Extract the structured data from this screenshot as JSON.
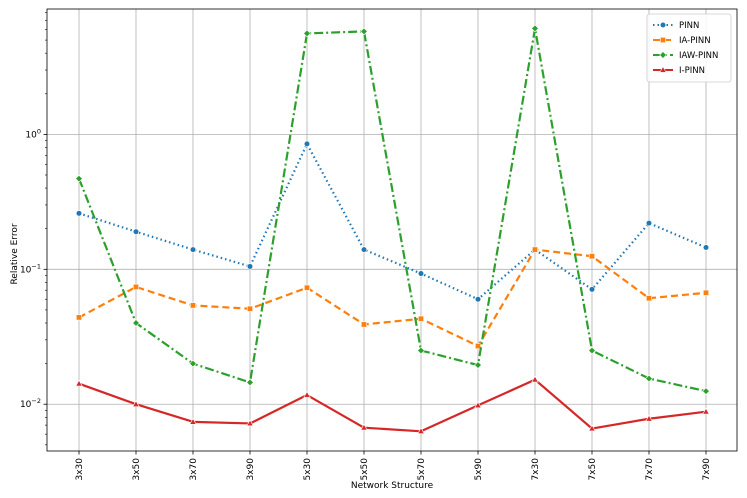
{
  "chart_data": {
    "type": "line",
    "title": "",
    "xlabel": "Network Structure",
    "ylabel": "Relative Error",
    "yscale": "log",
    "ylim": [
      0.0045,
      8.5
    ],
    "grid": true,
    "legend_position": "top-right",
    "categories": [
      "3x30",
      "3x50",
      "3x70",
      "3x90",
      "5x30",
      "5x50",
      "5x70",
      "5x90",
      "7x30",
      "7x50",
      "7x70",
      "7x90"
    ],
    "y_ticks": [
      {
        "value": 0.01,
        "base": "10",
        "exp": "−2"
      },
      {
        "value": 0.1,
        "base": "10",
        "exp": "−1"
      },
      {
        "value": 1,
        "base": "10",
        "exp": "0"
      }
    ],
    "series": [
      {
        "name": "PINN",
        "color": "#1f77b4",
        "dash": "1.5,3",
        "marker": "circle",
        "values": [
          0.26,
          0.19,
          0.14,
          0.105,
          0.85,
          0.14,
          0.093,
          0.06,
          0.14,
          0.071,
          0.22,
          0.145
        ]
      },
      {
        "name": "IA-PINN",
        "color": "#ff7f0e",
        "dash": "7,4",
        "marker": "square",
        "values": [
          0.044,
          0.074,
          0.054,
          0.051,
          0.073,
          0.039,
          0.043,
          0.027,
          0.14,
          0.125,
          0.061,
          0.067
        ]
      },
      {
        "name": "IAW-PINN",
        "color": "#2ca02c",
        "dash": "9,3,2,3",
        "marker": "diamond",
        "values": [
          0.47,
          0.04,
          0.02,
          0.0145,
          5.6,
          5.8,
          0.025,
          0.0195,
          6.1,
          0.025,
          0.0155,
          0.0125
        ]
      },
      {
        "name": "I-PINN",
        "color": "#d62728",
        "dash": "",
        "marker": "triangle",
        "values": [
          0.0142,
          0.01,
          0.0074,
          0.0072,
          0.0117,
          0.0067,
          0.0063,
          0.0098,
          0.0152,
          0.0066,
          0.0078,
          0.0088
        ]
      }
    ]
  }
}
